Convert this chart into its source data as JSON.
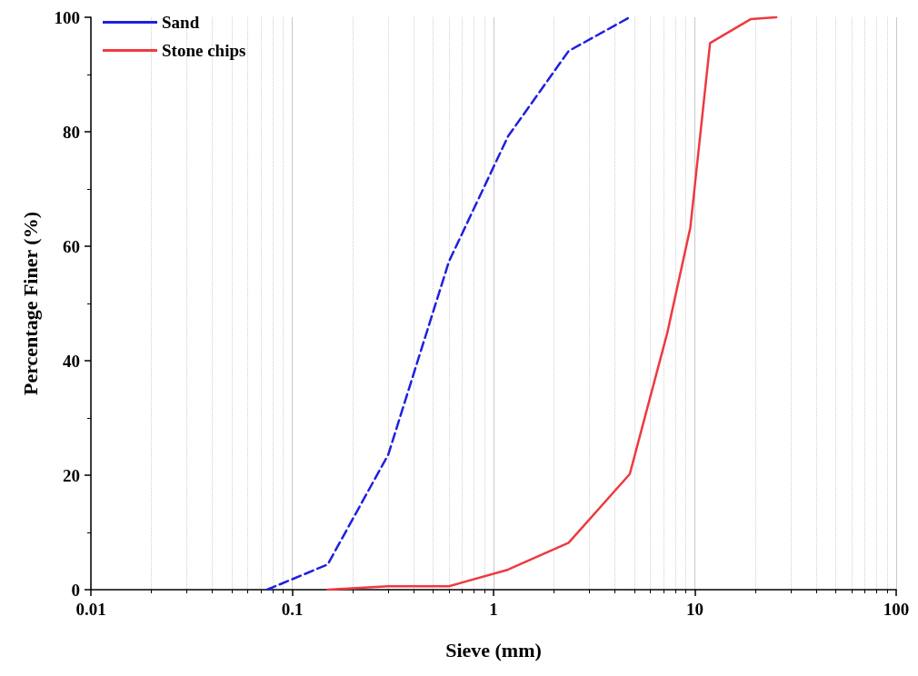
{
  "chart_data": {
    "type": "line",
    "xlabel": "Sieve (mm)",
    "ylabel": "Percentage Finer (%)",
    "log": "x",
    "xlim": [
      0.01,
      100
    ],
    "xticks": [
      0.01,
      0.1,
      1,
      10,
      100
    ],
    "ylim": [
      0,
      100
    ],
    "yticks": [
      0,
      20,
      40,
      60,
      80,
      100
    ],
    "grid": "x",
    "legend": "top left",
    "marker": "none",
    "series": [
      {
        "name": "Sand",
        "color": "#1f1fe0",
        "line_style": "dashed",
        "x": [
          0.075,
          0.15,
          0.3,
          0.6,
          1.18,
          2.36,
          4.75
        ],
        "values": [
          0,
          4.4,
          23.6,
          57.3,
          79.2,
          94.1,
          100
        ]
      },
      {
        "name": "Stone chips",
        "color": "#ee3a3f",
        "line_style": "solid",
        "x": [
          0.15,
          0.3,
          0.6,
          1.18,
          2.36,
          4.75,
          7.3,
          9.5,
          11.9,
          19,
          25.4
        ],
        "values": [
          0,
          0.6,
          0.6,
          3.5,
          8.2,
          20.2,
          44.9,
          63.3,
          95.5,
          99.7,
          100
        ]
      }
    ]
  }
}
